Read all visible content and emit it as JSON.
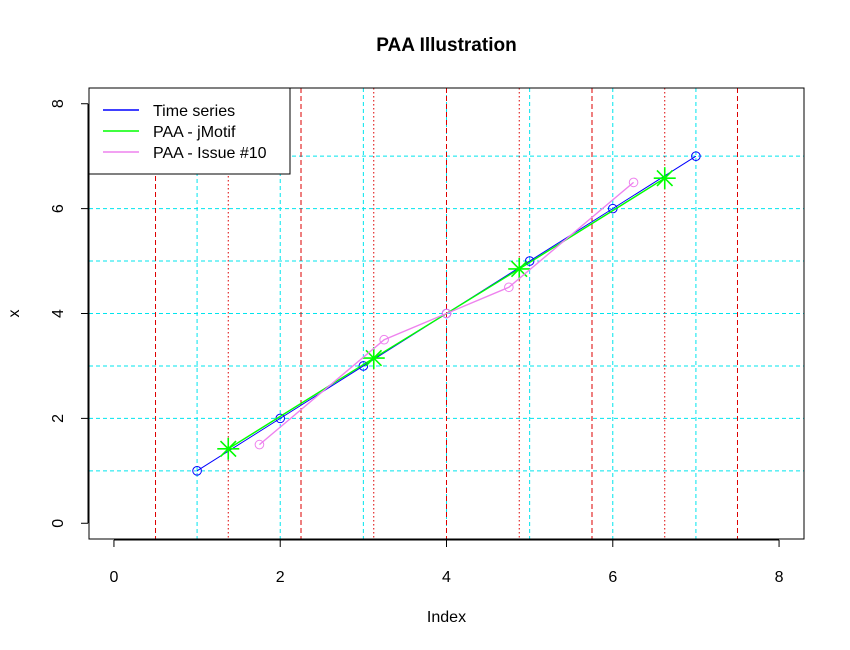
{
  "chart_data": {
    "type": "line",
    "title": "PAA Illustration",
    "xlabel": "Index",
    "ylabel": "x",
    "xlim": [
      -0.3,
      8.3
    ],
    "ylim": [
      -0.3,
      8.3
    ],
    "xticks": [
      0,
      2,
      4,
      6,
      8
    ],
    "yticks": [
      0,
      2,
      4,
      6,
      8
    ],
    "grid": {
      "x": [
        1,
        2,
        3,
        4,
        5,
        6,
        7
      ],
      "y": [
        1,
        2,
        3,
        4,
        5,
        6,
        7
      ],
      "color": "#00e5ee"
    },
    "segment_boundaries": {
      "dashed": [
        0.5,
        2.25,
        4.0,
        5.75,
        7.5
      ],
      "dotted": [
        1.375,
        3.125,
        4.875,
        6.625
      ],
      "color": "#dd0000"
    },
    "legend": {
      "position": "top-left",
      "entries": [
        "Time series",
        "PAA - jMotif",
        "PAA - Issue #10"
      ]
    },
    "series": [
      {
        "name": "Time series",
        "color": "#0000ff",
        "marker": "circle",
        "x": [
          1,
          2,
          3,
          4,
          5,
          6,
          7
        ],
        "y": [
          1,
          2,
          3,
          4,
          5,
          6,
          7
        ]
      },
      {
        "name": "PAA - jMotif",
        "color": "#00ff00",
        "marker": "asterisk",
        "x": [
          1.375,
          3.125,
          4.875,
          6.625
        ],
        "y": [
          1.42,
          3.15,
          4.85,
          6.58
        ]
      },
      {
        "name": "PAA - Issue #10",
        "color": "#ee82ee",
        "marker": "circle",
        "x": [
          1.75,
          3.25,
          4.0,
          4.75,
          6.25
        ],
        "y": [
          1.5,
          3.5,
          4.0,
          4.5,
          6.5
        ]
      }
    ]
  }
}
